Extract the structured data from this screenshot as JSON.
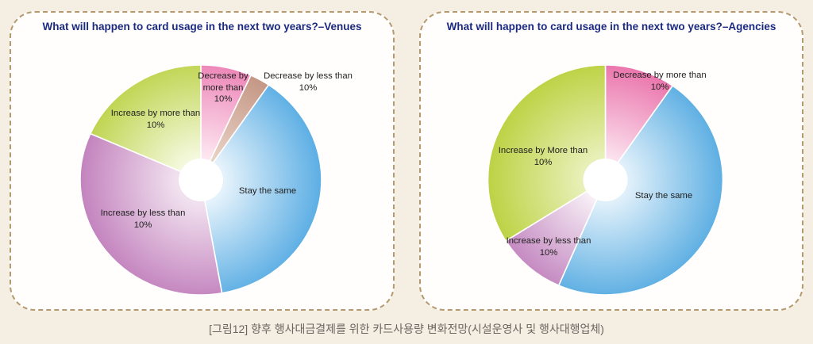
{
  "colors": {
    "background": "#f4eee3",
    "panel_border": "#b49a6e",
    "panel_fill": "#fffefc",
    "title": "#1b2a80",
    "caption": "#6b6661"
  },
  "figure": {
    "caption": "[그림12] 향후 행사대금결제를 위한 카드사용량 변화전망(시설운영사 및 행사대행업체)"
  },
  "chart_data": [
    {
      "type": "pie",
      "donut": true,
      "title": "What will happen to card usage in the next two years?–Venues",
      "categories": [
        "Decrease by more than 10%",
        "Decrease by less than 10%",
        "Stay the same",
        "Increase by less than 10%",
        "Increase by more than 10%"
      ],
      "values": [
        6.8,
        2.7,
        37.7,
        34.4,
        18.4
      ],
      "colors": [
        {
          "dark": "#ec82b6",
          "light": "#fde6f0"
        },
        {
          "dark": "#c39482",
          "light": "#e8d2c6"
        },
        {
          "dark": "#5caee4",
          "light": "#e4f2fb"
        },
        {
          "dark": "#c383be",
          "light": "#f1e1ef"
        },
        {
          "dark": "#bfd44f",
          "light": "#f4f8dc"
        }
      ]
    },
    {
      "type": "pie",
      "donut": true,
      "title": "What will happen to card usage in the next two years?–Agencies",
      "categories": [
        "Decrease by more than 10%",
        "Stay the same",
        "Increase by less than 10%",
        "Increase by More than 10%"
      ],
      "values": [
        9.7,
        46.8,
        9.6,
        33.9
      ],
      "colors": [
        {
          "dark": "#ea73ab",
          "light": "#fbe1ed"
        },
        {
          "dark": "#5eafe3",
          "light": "#e0f0fa"
        },
        {
          "dark": "#c489c1",
          "light": "#f7eef6"
        },
        {
          "dark": "#bdd244",
          "light": "#e8f0b8"
        }
      ]
    }
  ]
}
